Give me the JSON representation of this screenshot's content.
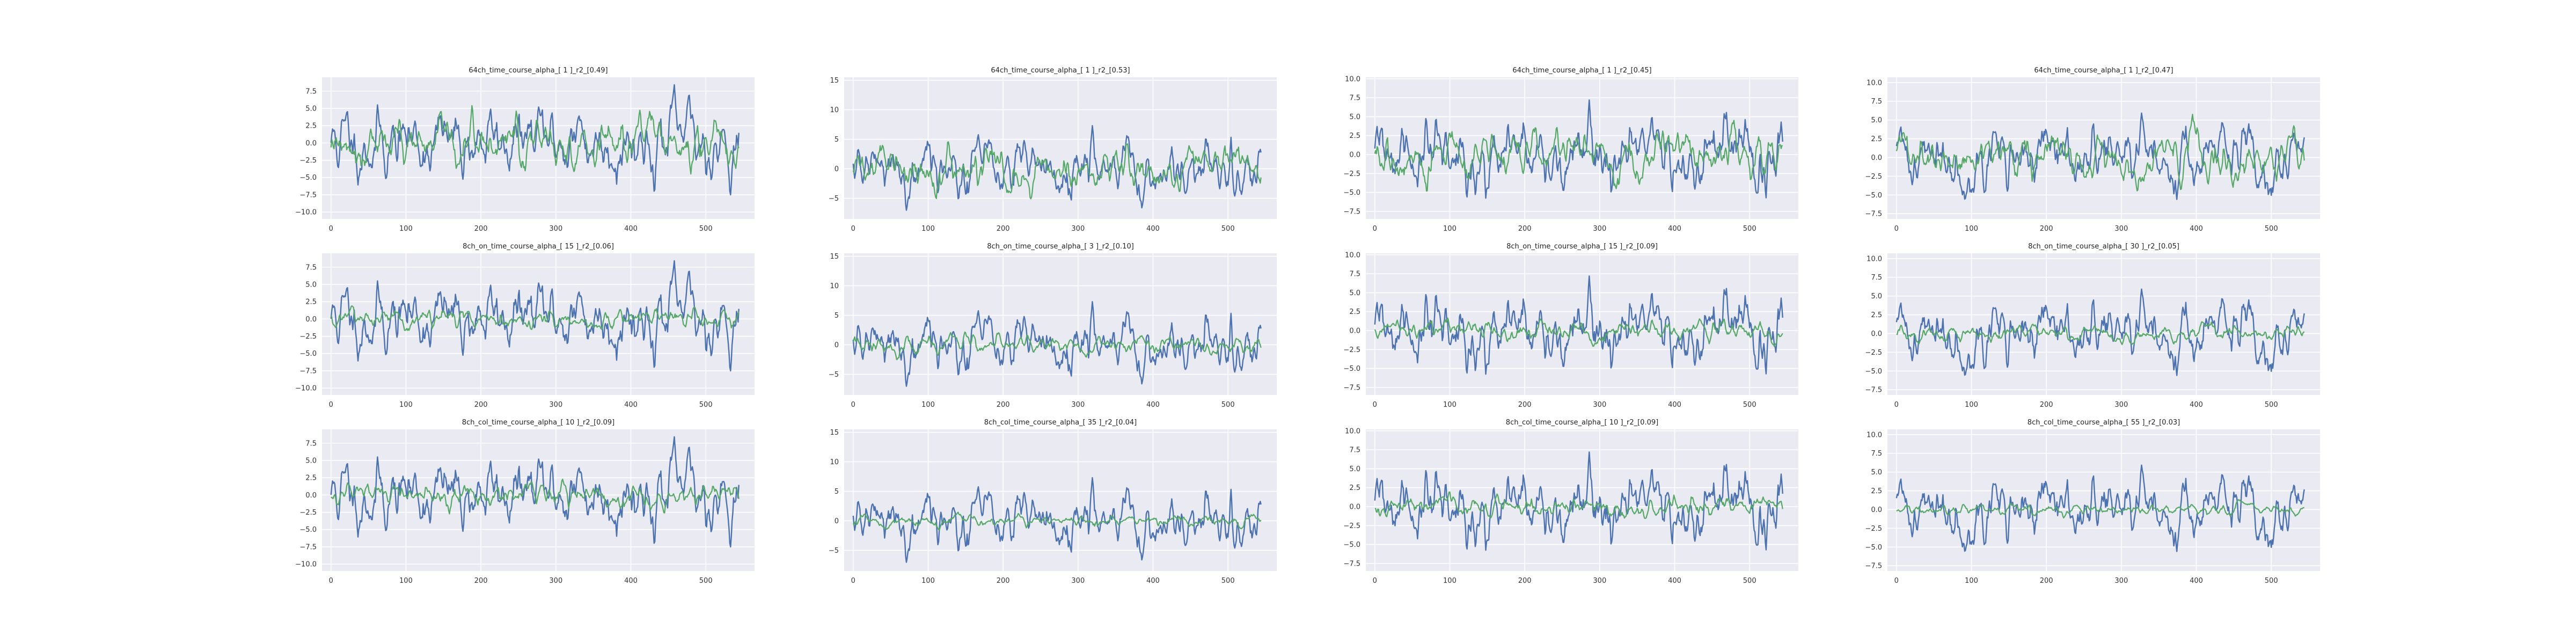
{
  "figure": {
    "background": "#ffffff",
    "axes_background": "#eaeaf2",
    "grid": true,
    "grid_color": "#ffffff"
  },
  "chart_data": [
    {
      "type": "line",
      "title": "64ch_time_course_alpha_[ 1 ]_r2_[0.49]",
      "xlim": [
        -12,
        565
      ],
      "ylim": [
        -11,
        9.5
      ],
      "xticks": [
        0,
        100,
        200,
        300,
        400,
        500
      ],
      "xtick_labels": [
        "0",
        "100",
        "200",
        "300",
        "400",
        "500"
      ],
      "yticks": [
        -10,
        -7.5,
        -5,
        -2.5,
        0,
        2.5,
        5,
        7.5
      ],
      "ytick_labels": [
        "−10.0",
        "−7.5",
        "−5.0",
        "−2.5",
        "0.0",
        "2.5",
        "5.0",
        "7.5"
      ],
      "series": [
        {
          "color": "#4c72b0",
          "n_points": 545,
          "seed": 11,
          "amplitude": 4.1
        },
        {
          "color": "#55a868",
          "n_points": 545,
          "seed": 12,
          "amplitude": 2.8
        }
      ]
    },
    {
      "type": "line",
      "title": "64ch_time_course_alpha_[ 1 ]_r2_[0.53]",
      "xlim": [
        -12,
        565
      ],
      "ylim": [
        -8.5,
        15.5
      ],
      "xticks": [
        0,
        100,
        200,
        300,
        400,
        500
      ],
      "xtick_labels": [
        "0",
        "100",
        "200",
        "300",
        "400",
        "500"
      ],
      "yticks": [
        -5,
        0,
        5,
        10,
        15
      ],
      "ytick_labels": [
        "−5",
        "0",
        "5",
        "10",
        "15"
      ],
      "series": [
        {
          "color": "#4c72b0",
          "n_points": 545,
          "seed": 21,
          "amplitude": 3.9
        },
        {
          "color": "#55a868",
          "n_points": 545,
          "seed": 22,
          "amplitude": 2.9
        }
      ]
    },
    {
      "type": "line",
      "title": "64ch_time_course_alpha_[ 1 ]_r2_[0.45]",
      "xlim": [
        -12,
        565
      ],
      "ylim": [
        -8.5,
        10.2
      ],
      "xticks": [
        0,
        100,
        200,
        300,
        400,
        500
      ],
      "xtick_labels": [
        "0",
        "100",
        "200",
        "300",
        "400",
        "500"
      ],
      "yticks": [
        -7.5,
        -5,
        -2.5,
        0,
        2.5,
        5,
        7.5,
        10
      ],
      "ytick_labels": [
        "−7.5",
        "−5.0",
        "−2.5",
        "0.0",
        "2.5",
        "5.0",
        "7.5",
        "10.0"
      ],
      "series": [
        {
          "color": "#4c72b0",
          "n_points": 545,
          "seed": 31,
          "amplitude": 3.6
        },
        {
          "color": "#55a868",
          "n_points": 545,
          "seed": 32,
          "amplitude": 2.6
        }
      ]
    },
    {
      "type": "line",
      "title": "64ch_time_course_alpha_[ 1 ]_r2_[0.47]",
      "xlim": [
        -12,
        565
      ],
      "ylim": [
        -8.2,
        10.7
      ],
      "xticks": [
        0,
        100,
        200,
        300,
        400,
        500
      ],
      "xtick_labels": [
        "0",
        "100",
        "200",
        "300",
        "400",
        "500"
      ],
      "yticks": [
        -7.5,
        -5,
        -2.5,
        0,
        2.5,
        5,
        7.5,
        10
      ],
      "ytick_labels": [
        "−7.5",
        "−5.0",
        "−2.5",
        "0.0",
        "2.5",
        "5.0",
        "7.5",
        "10.0"
      ],
      "series": [
        {
          "color": "#4c72b0",
          "n_points": 545,
          "seed": 41,
          "amplitude": 3.6
        },
        {
          "color": "#55a868",
          "n_points": 545,
          "seed": 42,
          "amplitude": 2.7
        }
      ]
    },
    {
      "type": "line",
      "title": "8ch_on_time_course_alpha_[ 15 ]_r2_[0.06]",
      "xlim": [
        -12,
        565
      ],
      "ylim": [
        -11,
        9.5
      ],
      "xticks": [
        0,
        100,
        200,
        300,
        400,
        500
      ],
      "xtick_labels": [
        "0",
        "100",
        "200",
        "300",
        "400",
        "500"
      ],
      "yticks": [
        -10,
        -7.5,
        -5,
        -2.5,
        0,
        2.5,
        5,
        7.5
      ],
      "ytick_labels": [
        "−10.0",
        "−7.5",
        "−5.0",
        "−2.5",
        "0.0",
        "2.5",
        "5.0",
        "7.5"
      ],
      "series": [
        {
          "color": "#4c72b0",
          "n_points": 545,
          "seed": 11,
          "amplitude": 4.1
        },
        {
          "color": "#55a868",
          "n_points": 545,
          "seed": 52,
          "amplitude": 1.1
        }
      ]
    },
    {
      "type": "line",
      "title": "8ch_on_time_course_alpha_[ 3 ]_r2_[0.10]",
      "xlim": [
        -12,
        565
      ],
      "ylim": [
        -8.5,
        15.5
      ],
      "xticks": [
        0,
        100,
        200,
        300,
        400,
        500
      ],
      "xtick_labels": [
        "0",
        "100",
        "200",
        "300",
        "400",
        "500"
      ],
      "yticks": [
        -5,
        0,
        5,
        10,
        15
      ],
      "ytick_labels": [
        "−5",
        "0",
        "5",
        "10",
        "15"
      ],
      "series": [
        {
          "color": "#4c72b0",
          "n_points": 545,
          "seed": 21,
          "amplitude": 3.9
        },
        {
          "color": "#55a868",
          "n_points": 545,
          "seed": 62,
          "amplitude": 1.3
        }
      ]
    },
    {
      "type": "line",
      "title": "8ch_on_time_course_alpha_[ 15 ]_r2_[0.09]",
      "xlim": [
        -12,
        565
      ],
      "ylim": [
        -8.5,
        10.2
      ],
      "xticks": [
        0,
        100,
        200,
        300,
        400,
        500
      ],
      "xtick_labels": [
        "0",
        "100",
        "200",
        "300",
        "400",
        "500"
      ],
      "yticks": [
        -7.5,
        -5,
        -2.5,
        0,
        2.5,
        5,
        7.5,
        10
      ],
      "ytick_labels": [
        "−7.5",
        "−5.0",
        "−2.5",
        "0.0",
        "2.5",
        "5.0",
        "7.5",
        "10.0"
      ],
      "series": [
        {
          "color": "#4c72b0",
          "n_points": 545,
          "seed": 31,
          "amplitude": 3.6
        },
        {
          "color": "#55a868",
          "n_points": 545,
          "seed": 72,
          "amplitude": 1.1
        }
      ]
    },
    {
      "type": "line",
      "title": "8ch_on_time_course_alpha_[ 30 ]_r2_[0.05]",
      "xlim": [
        -12,
        565
      ],
      "ylim": [
        -8.2,
        10.7
      ],
      "xticks": [
        0,
        100,
        200,
        300,
        400,
        500
      ],
      "xtick_labels": [
        "0",
        "100",
        "200",
        "300",
        "400",
        "500"
      ],
      "yticks": [
        -7.5,
        -5,
        -2.5,
        0,
        2.5,
        5,
        7.5,
        10
      ],
      "ytick_labels": [
        "−7.5",
        "−5.0",
        "−2.5",
        "0.0",
        "2.5",
        "5.0",
        "7.5",
        "10.0"
      ],
      "series": [
        {
          "color": "#4c72b0",
          "n_points": 545,
          "seed": 41,
          "amplitude": 3.6
        },
        {
          "color": "#55a868",
          "n_points": 545,
          "seed": 82,
          "amplitude": 0.9
        }
      ]
    },
    {
      "type": "line",
      "title": "8ch_col_time_course_alpha_[ 10 ]_r2_[0.09]",
      "xlim": [
        -12,
        565
      ],
      "ylim": [
        -11,
        9.5
      ],
      "xticks": [
        0,
        100,
        200,
        300,
        400,
        500
      ],
      "xtick_labels": [
        "0",
        "100",
        "200",
        "300",
        "400",
        "500"
      ],
      "yticks": [
        -10,
        -7.5,
        -5,
        -2.5,
        0,
        2.5,
        5,
        7.5
      ],
      "ytick_labels": [
        "−10.0",
        "−7.5",
        "−5.0",
        "−2.5",
        "0.0",
        "2.5",
        "5.0",
        "7.5"
      ],
      "series": [
        {
          "color": "#4c72b0",
          "n_points": 545,
          "seed": 11,
          "amplitude": 4.1
        },
        {
          "color": "#55a868",
          "n_points": 545,
          "seed": 92,
          "amplitude": 1.3
        }
      ]
    },
    {
      "type": "line",
      "title": "8ch_col_time_course_alpha_[ 35 ]_r2_[0.04]",
      "xlim": [
        -12,
        565
      ],
      "ylim": [
        -8.5,
        15.5
      ],
      "xticks": [
        0,
        100,
        200,
        300,
        400,
        500
      ],
      "xtick_labels": [
        "0",
        "100",
        "200",
        "300",
        "400",
        "500"
      ],
      "yticks": [
        -5,
        0,
        5,
        10,
        15
      ],
      "ytick_labels": [
        "−5",
        "0",
        "5",
        "10",
        "15"
      ],
      "series": [
        {
          "color": "#4c72b0",
          "n_points": 545,
          "seed": 21,
          "amplitude": 3.9
        },
        {
          "color": "#55a868",
          "n_points": 545,
          "seed": 102,
          "amplitude": 0.8
        }
      ]
    },
    {
      "type": "line",
      "title": "8ch_col_time_course_alpha_[ 10 ]_r2_[0.09]",
      "xlim": [
        -12,
        565
      ],
      "ylim": [
        -8.5,
        10.2
      ],
      "xticks": [
        0,
        100,
        200,
        300,
        400,
        500
      ],
      "xtick_labels": [
        "0",
        "100",
        "200",
        "300",
        "400",
        "500"
      ],
      "yticks": [
        -7.5,
        -5,
        -2.5,
        0,
        2.5,
        5,
        7.5,
        10
      ],
      "ytick_labels": [
        "−7.5",
        "−5.0",
        "−2.5",
        "0.0",
        "2.5",
        "5.0",
        "7.5",
        "10.0"
      ],
      "series": [
        {
          "color": "#4c72b0",
          "n_points": 545,
          "seed": 31,
          "amplitude": 3.6
        },
        {
          "color": "#55a868",
          "n_points": 545,
          "seed": 112,
          "amplitude": 1.0
        }
      ]
    },
    {
      "type": "line",
      "title": "8ch_col_time_course_alpha_[ 55 ]_r2_[0.03]",
      "xlim": [
        -12,
        565
      ],
      "ylim": [
        -8.2,
        10.7
      ],
      "xticks": [
        0,
        100,
        200,
        300,
        400,
        500
      ],
      "xtick_labels": [
        "0",
        "100",
        "200",
        "300",
        "400",
        "500"
      ],
      "yticks": [
        -7.5,
        -5,
        -2.5,
        0,
        2.5,
        5,
        7.5,
        10
      ],
      "ytick_labels": [
        "−7.5",
        "−5.0",
        "−2.5",
        "0.0",
        "2.5",
        "5.0",
        "7.5",
        "10.0"
      ],
      "series": [
        {
          "color": "#4c72b0",
          "n_points": 545,
          "seed": 41,
          "amplitude": 3.6
        },
        {
          "color": "#55a868",
          "n_points": 545,
          "seed": 122,
          "amplitude": 0.6
        }
      ]
    }
  ]
}
